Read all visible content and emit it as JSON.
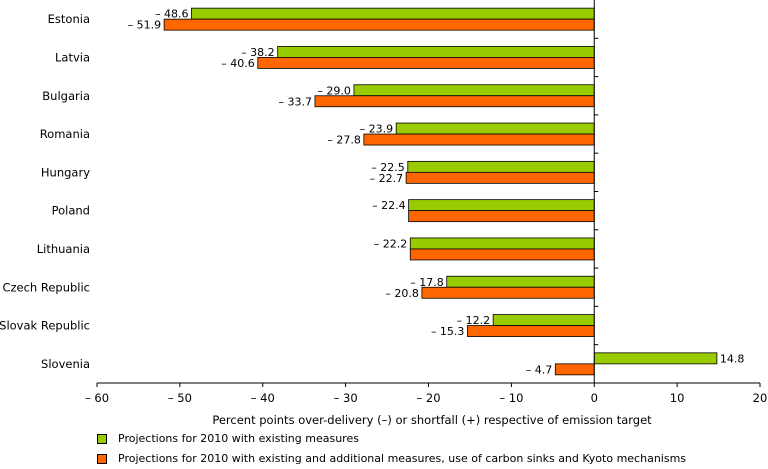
{
  "chart_data": {
    "type": "bar",
    "orientation": "horizontal",
    "categories": [
      "Estonia",
      "Latvia",
      "Bulgaria",
      "Romania",
      "Hungary",
      "Poland",
      "Lithuania",
      "Czech Republic",
      "Slovak Republic",
      "Slovenia"
    ],
    "series": [
      {
        "name": "Projections for 2010 with existing measures",
        "color": "#99cc00",
        "values": [
          -48.6,
          -38.2,
          -29.0,
          -23.9,
          -22.5,
          -22.4,
          -22.2,
          -17.8,
          -12.2,
          14.8
        ],
        "labels": [
          "– 48.6",
          "– 38.2",
          "– 29.0",
          "– 23.9",
          "– 22.5",
          "– 22.4",
          "– 22.2",
          "– 17.8",
          "– 12.2",
          "14.8"
        ]
      },
      {
        "name": "Projections for 2010 with existing and additional measures, use of carbon sinks and Kyoto mechanisms",
        "color": "#ff6600",
        "values": [
          -51.9,
          -40.6,
          -33.7,
          -27.8,
          -22.7,
          -22.4,
          -22.2,
          -20.8,
          -15.3,
          -4.7
        ],
        "labels": [
          "– 51.9",
          "– 40.6",
          "– 33.7",
          "– 27.8",
          "– 22.7",
          "",
          "",
          "– 20.8",
          "– 15.3",
          "– 4.7"
        ]
      }
    ],
    "xlabel": "Percent points over-delivery (–) or shortfall (+) respective of emission target",
    "xlim": [
      -60,
      20
    ],
    "xticks": [
      -60,
      -50,
      -40,
      -30,
      -20,
      -10,
      0,
      10,
      20
    ],
    "xtick_labels": [
      "– 60",
      "– 50",
      "– 40",
      "– 30",
      "– 20",
      "– 10",
      "0",
      "10",
      "20"
    ],
    "grid": false,
    "legend_position": "bottom"
  }
}
